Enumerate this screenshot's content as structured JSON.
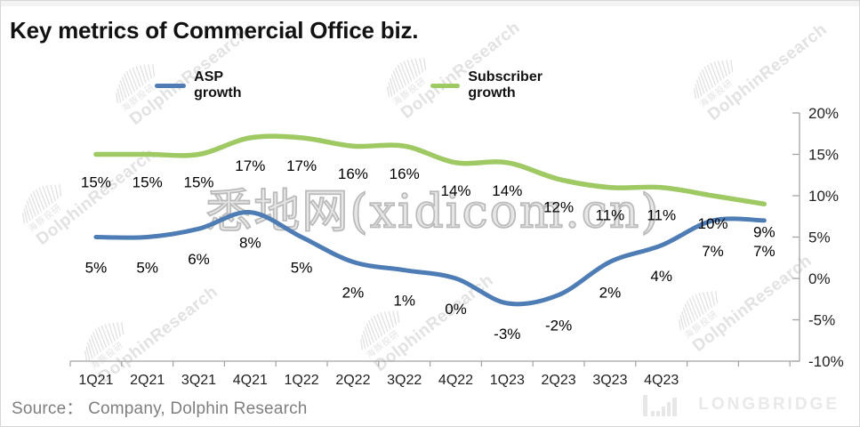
{
  "page": {
    "title": "Key metrics of Commercial Office biz.",
    "source": "Source：  Company, Dolphin Research"
  },
  "chart_data": {
    "type": "line",
    "title": "Key metrics of Commercial Office biz.",
    "categories": [
      "1Q21",
      "2Q21",
      "3Q21",
      "4Q21",
      "1Q22",
      "2Q22",
      "3Q22",
      "4Q22",
      "1Q23",
      "2Q23",
      "3Q23",
      "4Q23",
      "",
      ""
    ],
    "series": [
      {
        "name": "ASP growth",
        "color": "#4e7cb5",
        "values": [
          5,
          5,
          6,
          8,
          5,
          2,
          1,
          0,
          -3,
          -2,
          2,
          4,
          7,
          7
        ]
      },
      {
        "name": "Subscriber growth",
        "color": "#9ec963",
        "values": [
          15,
          15,
          15,
          17,
          17,
          16,
          16,
          14,
          14,
          12,
          11,
          11,
          10,
          9
        ]
      }
    ],
    "y_axis": {
      "min": -10,
      "max": 20,
      "tick_step": 5,
      "unit": "%",
      "position": "right",
      "tick_labels": [
        "20%",
        "15%",
        "10%",
        "5%",
        "0%",
        "-5%",
        "-10%"
      ]
    },
    "grid": false,
    "legend_position": "top",
    "data_labels": true,
    "smoothed_lines": true
  },
  "watermarks": {
    "center_text": "悉地网(xidicom.cn)",
    "diagonal_text": "DolphinResearch",
    "diagonal_text_cn": "海豚投研",
    "logo_text": "LONGBRIDGE"
  }
}
